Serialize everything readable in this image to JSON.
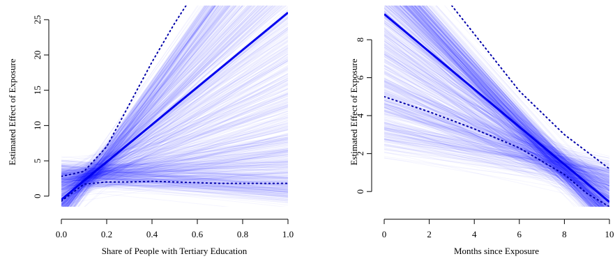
{
  "chart_data": [
    {
      "type": "line",
      "xlabel": "Share of People with Tertiary Education",
      "ylabel": "Estimated Effect of Exposure",
      "xlim": [
        0,
        1.0
      ],
      "ylim": [
        -1.5,
        27
      ],
      "xticks": [
        0,
        0.2,
        0.4,
        0.6,
        0.8,
        1.0
      ],
      "xtick_labels": [
        "0.0",
        "0.2",
        "0.4",
        "0.6",
        "0.8",
        "1.0"
      ],
      "yticks": [
        0,
        5,
        10,
        15,
        20,
        25
      ],
      "ytick_labels": [
        "0",
        "5",
        "10",
        "15",
        "20",
        "25"
      ],
      "grid": false,
      "colors": {
        "main": "#0000ee",
        "band": "#1a1aff",
        "ci": "#0000aa"
      },
      "series": [
        {
          "role": "estimate",
          "style": "solid",
          "x": [
            0.0,
            0.1,
            1.0
          ],
          "y": [
            -0.5,
            2.2,
            26.0
          ]
        },
        {
          "role": "upper",
          "style": "dotted",
          "x": [
            0.0,
            0.1,
            0.2,
            0.3,
            0.4,
            0.5,
            0.55
          ],
          "y": [
            2.8,
            3.5,
            7.0,
            13.0,
            19.0,
            24.5,
            27.0
          ]
        },
        {
          "role": "lower",
          "style": "dotted",
          "x": [
            0.0,
            0.1,
            0.2,
            0.3,
            0.4,
            0.5,
            0.6,
            0.7,
            0.8,
            0.9,
            1.0
          ],
          "y": [
            -0.7,
            1.7,
            2.0,
            2.0,
            2.1,
            2.0,
            1.9,
            1.8,
            1.8,
            1.8,
            1.8
          ]
        }
      ],
      "band": {
        "pivot_x": 0.13,
        "pivot_y": 3.0,
        "slope_min": -3.5,
        "slope_max": 47.0,
        "pivot_sd": 0.9
      }
    },
    {
      "type": "line",
      "xlabel": "Months since Exposure",
      "ylabel": "Estimated Effect of Exposure",
      "xlim": [
        0,
        10
      ],
      "ylim": [
        -0.8,
        9.8
      ],
      "xticks": [
        0,
        2,
        4,
        6,
        8,
        10
      ],
      "xtick_labels": [
        "0",
        "2",
        "4",
        "6",
        "8",
        "10"
      ],
      "yticks": [
        0,
        2,
        4,
        6,
        8
      ],
      "ytick_labels": [
        "0",
        "2",
        "4",
        "6",
        "8"
      ],
      "grid": false,
      "colors": {
        "main": "#0000ee",
        "band": "#1a1aff",
        "ci": "#0000aa"
      },
      "series": [
        {
          "role": "estimate",
          "style": "solid",
          "x": [
            0,
            10
          ],
          "y": [
            9.35,
            -0.55
          ]
        },
        {
          "role": "upper",
          "style": "dotted",
          "x": [
            3.0,
            4.0,
            6.0,
            8.0,
            10.0
          ],
          "y": [
            9.8,
            8.3,
            5.3,
            3.0,
            1.2
          ]
        },
        {
          "role": "lower",
          "style": "dotted",
          "x": [
            0.0,
            2.0,
            4.0,
            6.0,
            8.0,
            9.0,
            10.0
          ],
          "y": [
            5.0,
            4.2,
            3.3,
            2.3,
            0.9,
            -0.1,
            -0.8
          ]
        }
      ],
      "band": {
        "pivot_x": 7.8,
        "pivot_y": 1.4,
        "slope_min": -1.35,
        "slope_max": -0.15,
        "pivot_sd": 0.45
      }
    }
  ]
}
